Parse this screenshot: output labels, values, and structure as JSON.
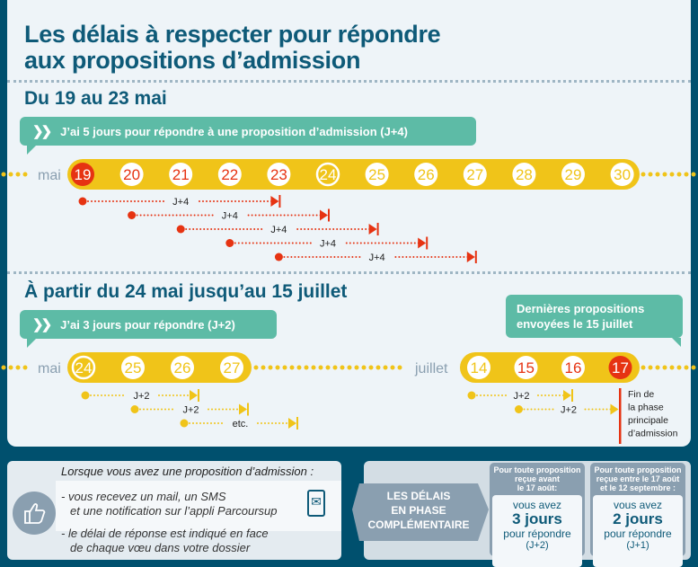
{
  "title_line1": "Les délais à respecter pour répondre",
  "title_line2": "aux propositions d’admission",
  "section1": {
    "heading": "Du 19 au 23 mai",
    "banner": "J’ai 5 jours pour répondre à une proposition d’admission (J+4)",
    "month": "mai",
    "days": [
      "19",
      "20",
      "21",
      "22",
      "23",
      "24",
      "25",
      "26",
      "27",
      "28",
      "29",
      "30"
    ],
    "arrows": [
      {
        "from": "19",
        "to": "23",
        "label": "J+4"
      },
      {
        "from": "20",
        "to": "24",
        "label": "J+4"
      },
      {
        "from": "21",
        "to": "25",
        "label": "J+4"
      },
      {
        "from": "22",
        "to": "26",
        "label": "J+4"
      },
      {
        "from": "23",
        "to": "27",
        "label": "J+4"
      }
    ]
  },
  "section2": {
    "heading": "À partir du 24 mai jusqu’au 15 juillet",
    "banner": "J’ai 3 jours pour répondre (J+2)",
    "note_line1": "Dernières propositions",
    "note_line2": "envoyées le 15 juillet",
    "month1": "mai",
    "days1": [
      "24",
      "25",
      "26",
      "27"
    ],
    "month2": "juillet",
    "days2": [
      "14",
      "15",
      "16",
      "17"
    ],
    "arrows1": [
      {
        "from": "24",
        "to": "26",
        "label": "J+2"
      },
      {
        "from": "25",
        "to": "27",
        "label": "J+2"
      },
      {
        "from": "26",
        "to": "28",
        "label": "etc."
      }
    ],
    "arrows2": [
      {
        "from": "14",
        "to": "16",
        "label": "J+2"
      },
      {
        "from": "15",
        "to": "17",
        "label": "J+2"
      }
    ],
    "end_note": [
      "Fin de",
      "la phase",
      "principale",
      "d’admission"
    ]
  },
  "info": {
    "heading": "Lorsque vous avez une proposition d’admission :",
    "item1_line1": "- vous recevez un mail, un SMS",
    "item1_line2": "et une notification sur l’appli Parcoursup",
    "item2_line1": "- le délai de réponse est indiqué en face",
    "item2_line2": "de chaque vœu dans votre dossier",
    "icon": "thumbs-up-icon",
    "icon2": "phone-mail-icon"
  },
  "complementary": {
    "label": [
      "LES DÉLAIS",
      "EN PHASE",
      "COMPLÉMENTAIRE"
    ],
    "cards": [
      {
        "head": [
          "Pour toute proposition",
          "reçue avant",
          "le 17 août:"
        ],
        "pre": "vous avez",
        "big": "3 jours",
        "post": "pour répondre",
        "code": "(J+2)"
      },
      {
        "head": [
          "Pour toute proposition",
          "reçue entre le 17 août",
          "et le 12 septembre :"
        ],
        "pre": "vous avez",
        "big": "2 jours",
        "post": "pour répondre",
        "code": "(J+1)"
      }
    ]
  },
  "colors": {
    "navy": "#00506e",
    "title": "#0e5a78",
    "teal": "#5dbba6",
    "yellow": "#f0c419",
    "red": "#e63312",
    "grey": "#8a9fb0"
  }
}
